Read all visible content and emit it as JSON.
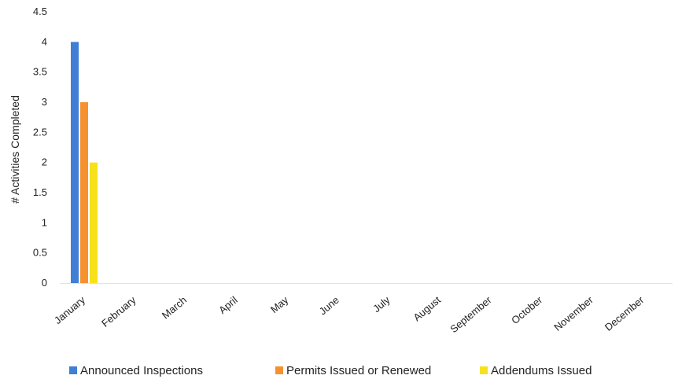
{
  "chart_data": {
    "type": "bar",
    "title": "",
    "xlabel": "",
    "ylabel": "# Activities Completed",
    "ylim": [
      0,
      4.5
    ],
    "y_ticks": [
      "0",
      "0.5",
      "1",
      "1.5",
      "2",
      "2.5",
      "3",
      "3.5",
      "4",
      "4.5"
    ],
    "categories": [
      "January",
      "February",
      "March",
      "April",
      "May",
      "June",
      "July",
      "August",
      "September",
      "October",
      "November",
      "December"
    ],
    "series": [
      {
        "name": "Announced Inspections",
        "color": "#3f7fd6",
        "values": [
          4,
          0,
          0,
          0,
          0,
          0,
          0,
          0,
          0,
          0,
          0,
          0
        ]
      },
      {
        "name": "Permits Issued or Renewed",
        "color": "#f5922f",
        "values": [
          3,
          0,
          0,
          0,
          0,
          0,
          0,
          0,
          0,
          0,
          0,
          0
        ]
      },
      {
        "name": "Addendums Issued",
        "color": "#f7e11b",
        "values": [
          2,
          0,
          0,
          0,
          0,
          0,
          0,
          0,
          0,
          0,
          0,
          0
        ]
      }
    ],
    "grid": false,
    "legend_position": "bottom"
  }
}
